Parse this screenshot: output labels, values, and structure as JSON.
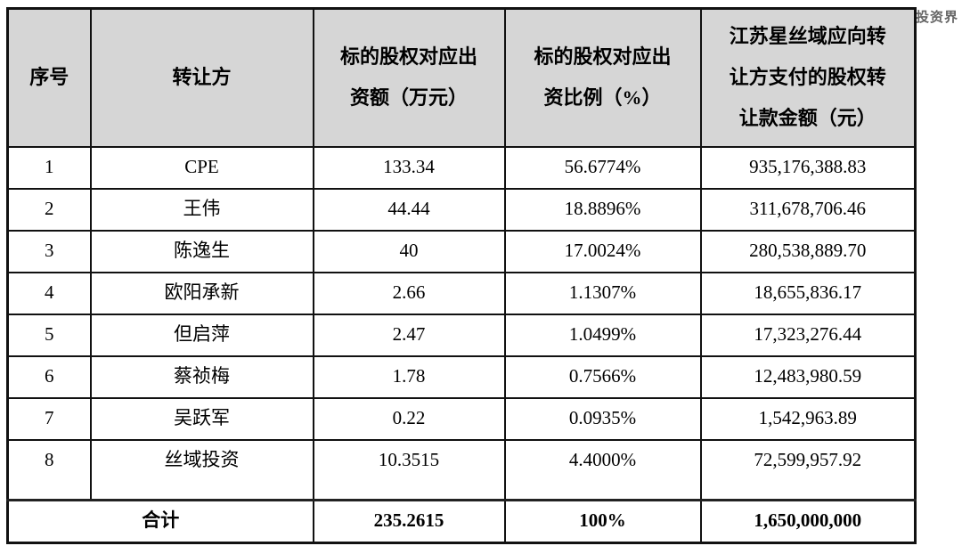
{
  "watermark": "@投资界",
  "colors": {
    "header_bg": "#d6d6d6",
    "border": "#111111",
    "watermark": "#4a4a4a",
    "page_bg": "#ffffff"
  },
  "table": {
    "headers": [
      "序号",
      "转让方",
      "标的股权对应出\n资额（万元）",
      "标的股权对应出\n资比例（%）",
      "江苏星丝域应向转\n让方支付的股权转\n让款金额（元）"
    ],
    "rows": [
      {
        "no": "1",
        "transferor": "CPE",
        "amount": "133.34",
        "ratio": "56.6774%",
        "payment": "935,176,388.83"
      },
      {
        "no": "2",
        "transferor": "王伟",
        "amount": "44.44",
        "ratio": "18.8896%",
        "payment": "311,678,706.46"
      },
      {
        "no": "3",
        "transferor": "陈逸生",
        "amount": "40",
        "ratio": "17.0024%",
        "payment": "280,538,889.70"
      },
      {
        "no": "4",
        "transferor": "欧阳承新",
        "amount": "2.66",
        "ratio": "1.1307%",
        "payment": "18,655,836.17"
      },
      {
        "no": "5",
        "transferor": "但启萍",
        "amount": "2.47",
        "ratio": "1.0499%",
        "payment": "17,323,276.44"
      },
      {
        "no": "6",
        "transferor": "蔡祯梅",
        "amount": "1.78",
        "ratio": "0.7566%",
        "payment": "12,483,980.59"
      },
      {
        "no": "7",
        "transferor": "吴跃军",
        "amount": "0.22",
        "ratio": "0.0935%",
        "payment": "1,542,963.89"
      },
      {
        "no": "8",
        "transferor": "丝域投资",
        "amount": "10.3515",
        "ratio": "4.4000%",
        "payment": "72,599,957.92"
      }
    ],
    "total": {
      "label": "合计",
      "amount": "235.2615",
      "ratio": "100%",
      "payment": "1,650,000,000"
    }
  }
}
